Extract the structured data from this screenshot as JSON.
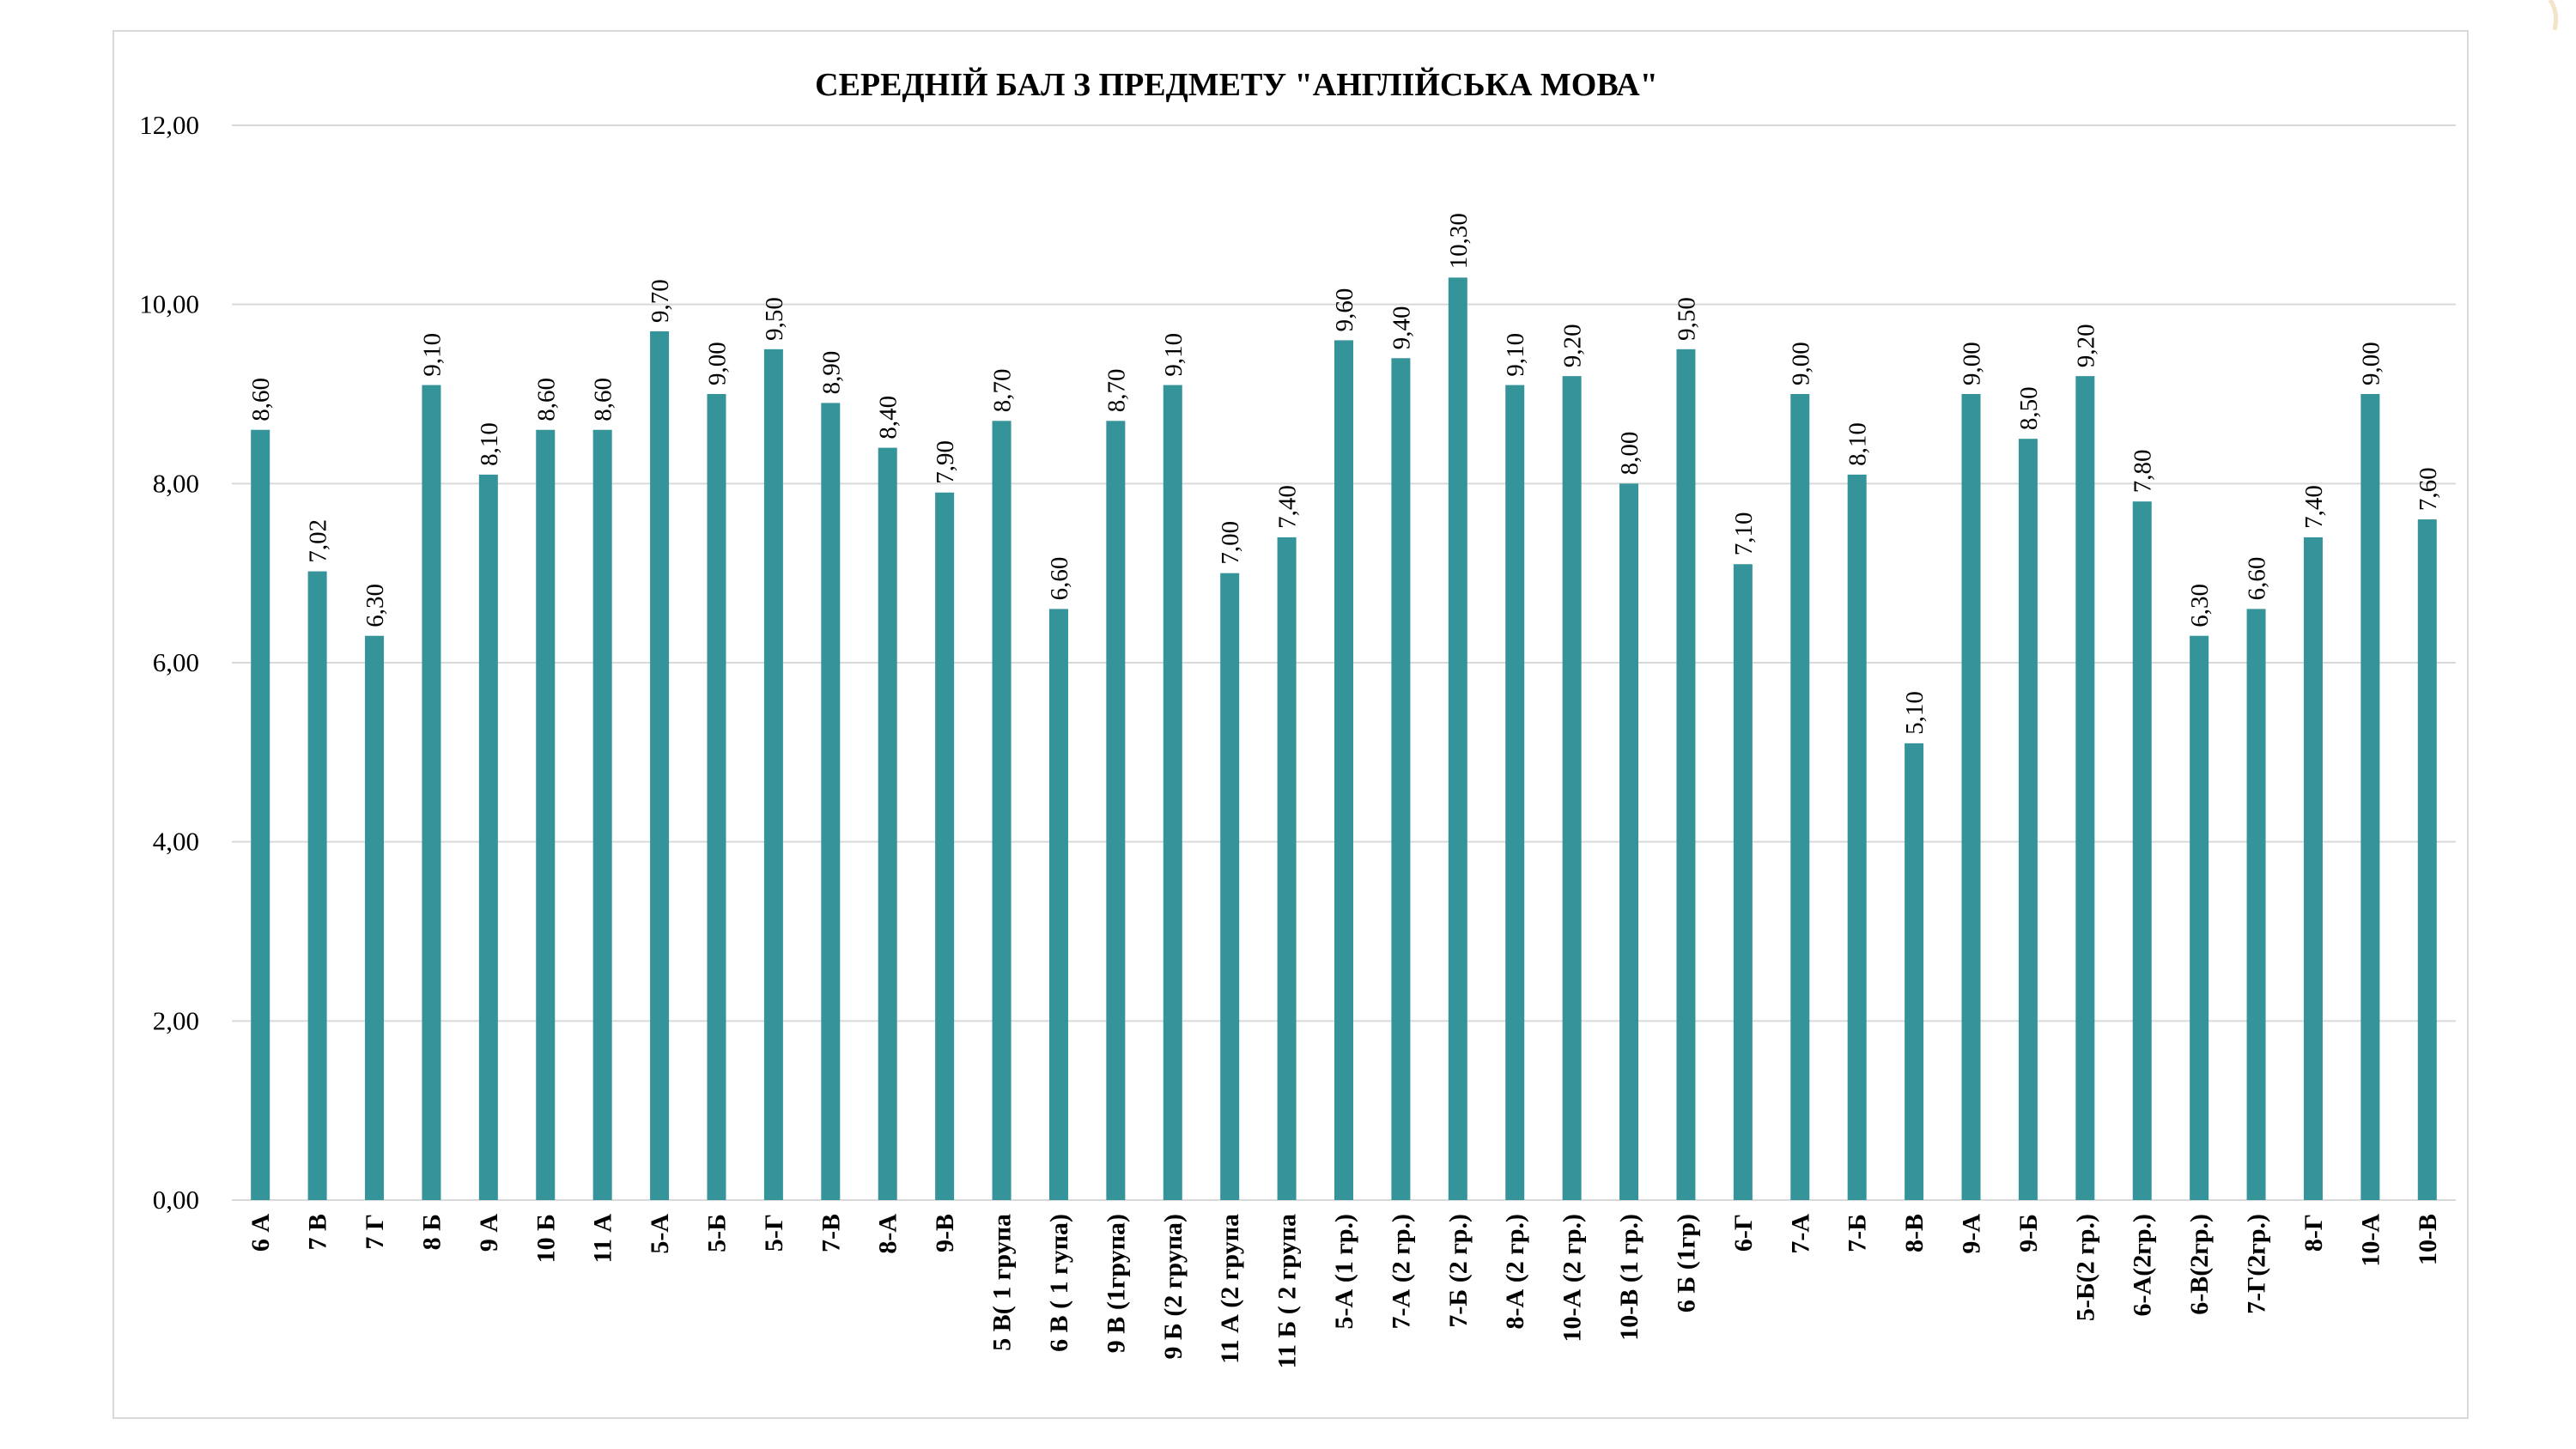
{
  "chart_data": {
    "type": "bar",
    "title": "СЕРЕДНІЙ БАЛ З ПРЕДМЕТУ \"АНГЛІЙСЬКА МОВА\"",
    "xlabel": "",
    "ylabel": "",
    "ylim": [
      0,
      12
    ],
    "y_ticks": [
      "0,00",
      "2,00",
      "4,00",
      "6,00",
      "8,00",
      "10,00",
      "12,00"
    ],
    "y_tick_values": [
      0,
      2,
      4,
      6,
      8,
      10,
      12
    ],
    "grid": true,
    "bar_color": "#35949a",
    "categories": [
      "6 А",
      "7 В",
      "7 Г",
      "8 Б",
      "9 А",
      "10 Б",
      "11 А",
      "5-А",
      "5-Б",
      "5-Г",
      "7-В",
      "8-А",
      "9-В",
      "5 В( 1 група",
      "6 В ( 1 гупа)",
      "9 В (1група)",
      "9 Б (2 група)",
      "11 А (2 група",
      "11 Б ( 2 група",
      "5-А (1 гр.)",
      "7-А (2 гр.)",
      "7-Б (2 гр.)",
      "8-А (2 гр.)",
      "10-А (2 гр.)",
      "10-В (1 гр.)",
      "6 Б (1гр)",
      "6-Г",
      "7-А",
      "7-Б",
      "8-В",
      "9-А",
      "9-Б",
      "5-Б(2 гр.)",
      "6-А(2гр.)",
      "6-В(2гр.)",
      "7-Г(2гр.)",
      "8-Г",
      "10-А",
      "10-В"
    ],
    "values": [
      8.6,
      7.02,
      6.3,
      9.1,
      8.1,
      8.6,
      8.6,
      9.7,
      9.0,
      9.5,
      8.9,
      8.4,
      7.9,
      8.7,
      6.6,
      8.7,
      9.1,
      7.0,
      7.4,
      9.6,
      9.4,
      10.3,
      9.1,
      9.2,
      8.0,
      9.5,
      7.1,
      9.0,
      8.1,
      5.1,
      9.0,
      8.5,
      9.2,
      7.8,
      6.3,
      6.6,
      7.4,
      9.0,
      7.6
    ],
    "value_labels": [
      "8,60",
      "7,02",
      "6,30",
      "9,10",
      "8,10",
      "8,60",
      "8,60",
      "9,70",
      "9,00",
      "9,50",
      "8,90",
      "8,40",
      "7,90",
      "8,70",
      "6,60",
      "8,70",
      "9,10",
      "7,00",
      "7,40",
      "9,60",
      "9,40",
      "10,30",
      "9,10",
      "9,20",
      "8,00",
      "9,50",
      "7,10",
      "9,00",
      "8,10",
      "5,10",
      "9,00",
      "8,50",
      "9,20",
      "7,80",
      "6,30",
      "6,60",
      "7,40",
      "9,00",
      "7,60"
    ]
  }
}
